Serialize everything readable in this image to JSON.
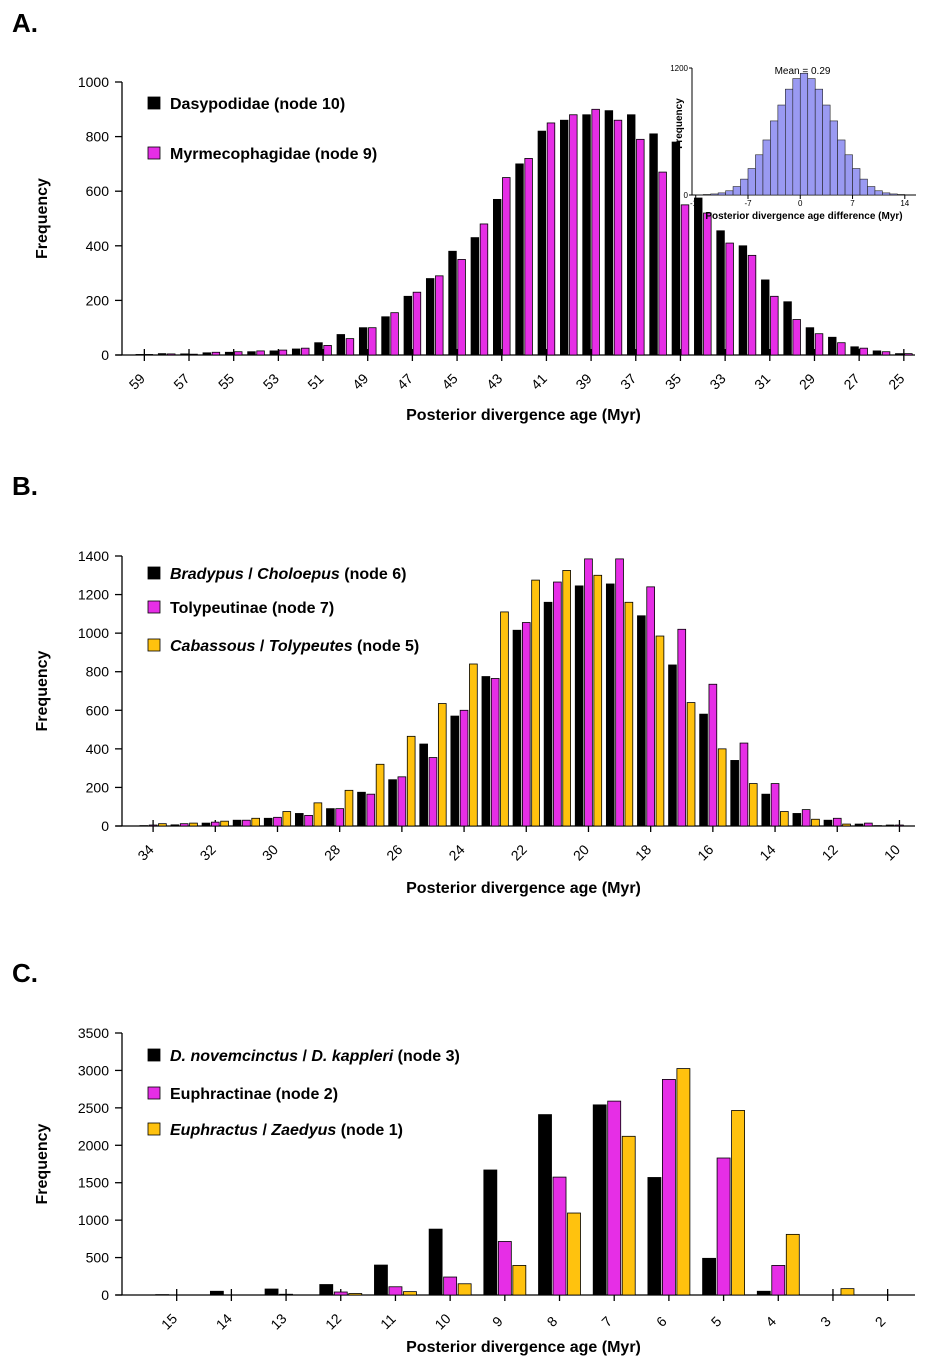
{
  "colors": {
    "black": "#000000",
    "magenta": "#e62ee6",
    "yellow": "#ffc20e",
    "inset": "#9a9af2"
  },
  "chart_data": [
    {
      "panel_label": "A.",
      "type": "bar",
      "xlabel": "Posterior divergence age (Myr)",
      "ylabel": "Frequency",
      "ylim": [
        0,
        1000
      ],
      "yticks": [
        0,
        200,
        400,
        600,
        800,
        1000
      ],
      "xlim": [
        60,
        24.5
      ],
      "xticks": [
        59,
        57,
        55,
        53,
        51,
        49,
        47,
        45,
        43,
        41,
        39,
        37,
        35,
        33,
        31,
        29,
        27,
        25
      ],
      "bin_width": 1,
      "x": [
        59,
        58,
        57,
        56,
        55,
        54,
        53,
        52,
        51,
        50,
        49,
        48,
        47,
        46,
        45,
        44,
        43,
        42,
        41,
        40,
        39,
        38,
        37,
        36,
        35,
        34,
        33,
        32,
        31,
        30,
        29,
        28,
        27,
        26,
        25
      ],
      "series": [
        {
          "name": "Dasypodidae (node 10)",
          "color": "black",
          "values": [
            2,
            5,
            4,
            8,
            10,
            12,
            15,
            22,
            45,
            75,
            100,
            140,
            215,
            280,
            380,
            430,
            570,
            700,
            820,
            860,
            880,
            895,
            880,
            810,
            780,
            575,
            455,
            400,
            275,
            195,
            100,
            65,
            30,
            15,
            5
          ]
        },
        {
          "name": "Myrmecophagidae (node 9)",
          "color": "magenta",
          "values": [
            2,
            4,
            3,
            10,
            12,
            15,
            18,
            25,
            35,
            60,
            100,
            155,
            230,
            290,
            350,
            480,
            650,
            720,
            850,
            880,
            900,
            860,
            790,
            670,
            550,
            520,
            410,
            365,
            215,
            130,
            78,
            45,
            25,
            12,
            5
          ]
        }
      ],
      "legend_position": "top-left",
      "inset": {
        "type": "histogram",
        "title": "Mean = 0.29",
        "xlabel": "Posterior divergence age difference (Myr)",
        "ylabel": "Frequency",
        "xticks": [
          -14,
          -7,
          0,
          7,
          14
        ],
        "ylim": [
          0,
          1200
        ],
        "ytick_labels": [
          "0",
          "1200"
        ],
        "bin_edges_start": -14,
        "bin_width": 1,
        "values": [
          2,
          5,
          10,
          20,
          40,
          80,
          150,
          250,
          380,
          520,
          700,
          850,
          1000,
          1100,
          1150,
          1100,
          1000,
          850,
          700,
          520,
          380,
          250,
          150,
          80,
          40,
          20,
          10,
          5
        ]
      }
    },
    {
      "panel_label": "B.",
      "type": "bar",
      "xlabel": "Posterior divergence age (Myr)",
      "ylabel": "Frequency",
      "ylim": [
        0,
        1400
      ],
      "yticks": [
        0,
        200,
        400,
        600,
        800,
        1000,
        1200,
        1400
      ],
      "xlim": [
        35,
        9.5
      ],
      "xticks": [
        34,
        32,
        30,
        28,
        26,
        24,
        22,
        20,
        18,
        16,
        14,
        12,
        10
      ],
      "bin_width": 1,
      "x": [
        34,
        33,
        32,
        31,
        30,
        29,
        28,
        27,
        26,
        25,
        24,
        23,
        22,
        21,
        20,
        19,
        18,
        17,
        16,
        15,
        14,
        13,
        12,
        11,
        10
      ],
      "series": [
        {
          "name": "Bradypus / Choloepus (node 6)",
          "name_parts": [
            {
              "text": "Bradypus",
              "italic": true
            },
            {
              "text": " / ",
              "italic": false
            },
            {
              "text": "Choloepus",
              "italic": true
            },
            {
              "text": " (node 6)",
              "italic": false
            }
          ],
          "color": "black",
          "values": [
            2,
            6,
            15,
            30,
            40,
            65,
            90,
            175,
            240,
            425,
            570,
            775,
            1015,
            1160,
            1245,
            1255,
            1090,
            835,
            580,
            340,
            165,
            65,
            30,
            10,
            5
          ]
        },
        {
          "name": "Tolypeutinae (node 7)",
          "color": "magenta",
          "values": [
            5,
            12,
            20,
            30,
            45,
            55,
            90,
            165,
            255,
            355,
            600,
            765,
            1055,
            1265,
            1385,
            1385,
            1240,
            1020,
            735,
            430,
            220,
            85,
            40,
            15,
            5
          ]
        },
        {
          "name": "Cabassous / Tolypeutes (node 5)",
          "name_parts": [
            {
              "text": "Cabassous",
              "italic": true
            },
            {
              "text": " / ",
              "italic": false
            },
            {
              "text": "Tolypeutes",
              "italic": true
            },
            {
              "text": " (node 5)",
              "italic": false
            }
          ],
          "color": "yellow",
          "values": [
            12,
            15,
            25,
            40,
            75,
            120,
            185,
            320,
            465,
            635,
            840,
            1110,
            1275,
            1325,
            1300,
            1160,
            985,
            640,
            400,
            220,
            75,
            35,
            10,
            2,
            0
          ]
        }
      ],
      "legend_position": "top-left"
    },
    {
      "panel_label": "C.",
      "type": "bar",
      "xlabel": "Posterior divergence age (Myr)",
      "ylabel": "Frequency",
      "ylim": [
        0,
        3500
      ],
      "yticks": [
        0,
        500,
        1000,
        1500,
        2000,
        2500,
        3000,
        3500
      ],
      "xlim": [
        16,
        1.5
      ],
      "xticks": [
        15,
        14,
        13,
        12,
        11,
        10,
        9,
        8,
        7,
        6,
        5,
        4,
        3,
        2
      ],
      "bin_width": 1,
      "x": [
        15,
        14,
        13,
        12,
        11,
        10,
        9,
        8,
        7,
        6,
        5,
        4,
        3,
        2
      ],
      "series": [
        {
          "name": "D. novemcinctus / D. kappleri (node 3)",
          "name_parts": [
            {
              "text": "D. novemcinctus",
              "italic": true
            },
            {
              "text": " / ",
              "italic": false
            },
            {
              "text": "D. kappleri",
              "italic": true
            },
            {
              "text": " (node 3)",
              "italic": false
            }
          ],
          "color": "black",
          "values": [
            5,
            50,
            80,
            140,
            400,
            880,
            1670,
            2410,
            2540,
            1570,
            490,
            50,
            0,
            0
          ]
        },
        {
          "name": "Euphractinae (node 2)",
          "color": "magenta",
          "values": [
            0,
            0,
            10,
            40,
            110,
            240,
            715,
            1575,
            2590,
            2880,
            1830,
            395,
            0,
            0
          ]
        },
        {
          "name": "Euphractus / Zaedyus (node 1)",
          "name_parts": [
            {
              "text": "Euphractus",
              "italic": true
            },
            {
              "text": " / ",
              "italic": false
            },
            {
              "text": "Zaedyus",
              "italic": true
            },
            {
              "text": " (node 1)",
              "italic": false
            }
          ],
          "color": "yellow",
          "values": [
            0,
            0,
            0,
            20,
            45,
            150,
            395,
            1095,
            2120,
            3025,
            2465,
            810,
            85,
            0
          ]
        }
      ],
      "legend_position": "top-left"
    }
  ]
}
